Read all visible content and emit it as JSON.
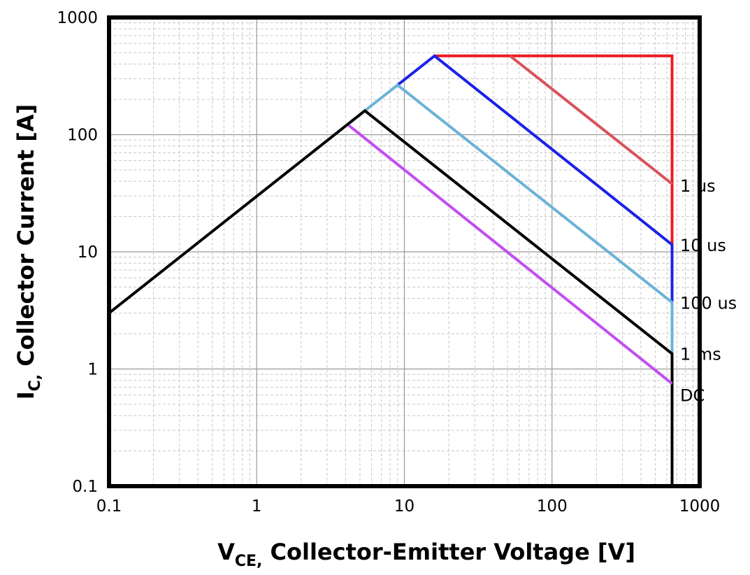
{
  "chart_data": {
    "type": "line",
    "scale": "log-log",
    "title": "",
    "xlabel": {
      "main": "V",
      "sub": "CE,",
      "rest": " Collector-Emitter Voltage [V]"
    },
    "ylabel": {
      "main": "I",
      "sub": "C,",
      "rest": " Collector Current [A]"
    },
    "xlim": [
      0.1,
      1000
    ],
    "ylim": [
      0.1,
      1000
    ],
    "x_ticks": [
      0.1,
      1,
      10,
      100,
      1000
    ],
    "x_tick_labels": [
      "0.1",
      "1",
      "10",
      "100",
      "1000"
    ],
    "y_ticks": [
      0.1,
      1,
      10,
      100,
      1000
    ],
    "y_tick_labels": [
      "0.1",
      "1",
      "10",
      "100",
      "1000"
    ],
    "grid": true,
    "series": [
      {
        "name": "1 us",
        "color": "#ee1c24",
        "points": [
          [
            16,
            470
          ],
          [
            650,
            470
          ],
          [
            650,
            0.1
          ]
        ]
      },
      {
        "name": "1 us",
        "color": "#d9525b",
        "points": [
          [
            52,
            470
          ],
          [
            650,
            38
          ]
        ]
      },
      {
        "name": "10 us",
        "color": "#1b22e6",
        "points": [
          [
            9.0,
            265
          ],
          [
            16,
            470
          ],
          [
            650,
            11.5
          ],
          [
            650,
            0.1
          ]
        ]
      },
      {
        "name": "100 us",
        "color": "#6bb3d6",
        "points": [
          [
            5.4,
            160
          ],
          [
            9.0,
            265
          ],
          [
            650,
            3.7
          ],
          [
            650,
            0.1
          ]
        ]
      },
      {
        "name": "1 ms",
        "color": "#000000",
        "points": [
          [
            0.1,
            3.0
          ],
          [
            5.4,
            160
          ],
          [
            650,
            1.35
          ],
          [
            650,
            0.1
          ]
        ]
      },
      {
        "name": "DC",
        "color": "#c04ff0",
        "points": [
          [
            4.2,
            120
          ],
          [
            650,
            0.75
          ]
        ]
      }
    ],
    "annotations": [
      {
        "text": "1 us",
        "x": 700,
        "y": 37
      },
      {
        "text": "10 us",
        "x": 700,
        "y": 11.5
      },
      {
        "text": "100 us",
        "x": 700,
        "y": 3.7
      },
      {
        "text": "1 ms",
        "x": 700,
        "y": 1.35
      },
      {
        "text": "DC",
        "x": 700,
        "y": 0.6
      }
    ],
    "legend": "inline-right",
    "extra_marks": [
      {
        "type": "dashed-vertical",
        "x": 1000,
        "y_range": [
          0.95,
          5.2
        ],
        "color": "#000000"
      }
    ]
  }
}
